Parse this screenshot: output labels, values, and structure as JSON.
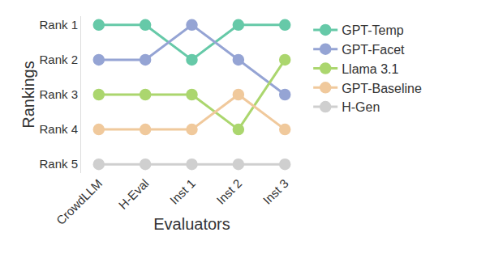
{
  "chart_data": {
    "type": "line",
    "x_label": "Evaluators",
    "y_label": "Rankings",
    "categories": [
      "CrowdLLM",
      "H-Eval",
      "Inst 1",
      "Inst 2",
      "Inst 3"
    ],
    "series": [
      {
        "name": "GPT-Temp",
        "color": "#66c9a8",
        "values": [
          1,
          1,
          2,
          1,
          1
        ]
      },
      {
        "name": "GPT-Facet",
        "color": "#95a4d4",
        "values": [
          2,
          2,
          1,
          2,
          3
        ]
      },
      {
        "name": "Llama 3.1",
        "color": "#abd66e",
        "values": [
          3,
          3,
          3,
          4,
          2
        ]
      },
      {
        "name": "GPT-Baseline",
        "color": "#f0c99c",
        "values": [
          4,
          4,
          4,
          3,
          4
        ]
      },
      {
        "name": "H-Gen",
        "color": "#cfcfcf",
        "values": [
          5,
          5,
          5,
          5,
          5
        ]
      }
    ],
    "ylim": [
      5.25,
      0.75
    ],
    "yticks": [
      {
        "value": 1,
        "label": "Rank 1"
      },
      {
        "value": 2,
        "label": "Rank 2"
      },
      {
        "value": 3,
        "label": "Rank 3"
      },
      {
        "value": 4,
        "label": "Rank 4"
      },
      {
        "value": 5,
        "label": "Rank 5"
      }
    ],
    "marker": "circle",
    "line_style": "solid",
    "legend": "right",
    "grid": false
  }
}
